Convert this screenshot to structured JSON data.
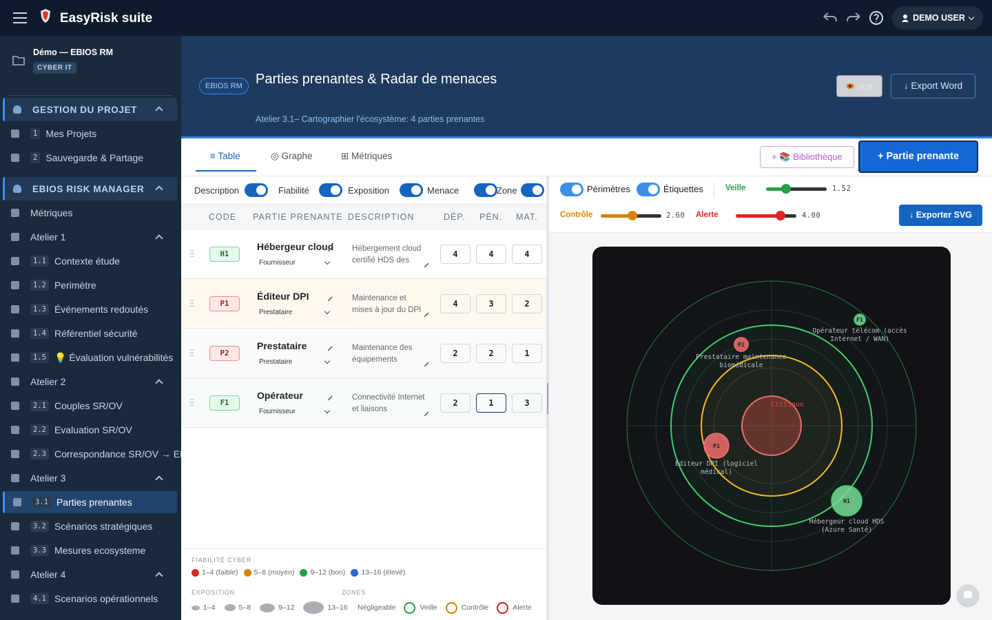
{
  "app": {
    "name": "EasyRisk suite",
    "user": "DEMO USER"
  },
  "sidebar": {
    "project": "Démo — EBIOS RM",
    "tag": "CYBER IT",
    "sections": [
      {
        "title": "GESTION DU PROJET",
        "items": [
          {
            "badge": "1",
            "label": "Mes Projets"
          },
          {
            "badge": "2",
            "label": "Sauvegarde & Partage"
          }
        ]
      },
      {
        "title": "EBIOS RISK MANAGER",
        "items": [
          {
            "label": "Métriques"
          },
          {
            "label": "Atelier 1",
            "items": [
              {
                "badge": "1.1",
                "label": "Contexte étude"
              },
              {
                "badge": "1.2",
                "label": "Perimètre"
              },
              {
                "badge": "1.3",
                "label": "Événements redoutés"
              },
              {
                "badge": "1.4",
                "label": "Référentiel sécurité"
              },
              {
                "badge": "1.5",
                "label": "💡 Évaluation vulnérabilités"
              }
            ]
          },
          {
            "label": "Atelier 2",
            "items": [
              {
                "badge": "2.1",
                "label": "Couples SR/OV"
              },
              {
                "badge": "2.2",
                "label": "Evaluation SR/OV"
              },
              {
                "badge": "2.3",
                "label": "Correspondance SR/OV → EF"
              }
            ]
          },
          {
            "label": "Atelier 3",
            "items": [
              {
                "badge": "3.1",
                "label": "Parties prenantes",
                "active": true
              },
              {
                "badge": "3.2",
                "label": "Scénarios stratégiques"
              },
              {
                "badge": "3.3",
                "label": "Mesures ecosysteme"
              }
            ]
          },
          {
            "label": "Atelier 4",
            "items": [
              {
                "badge": "4.1",
                "label": "Scenarios opérationnels"
              }
            ]
          }
        ]
      }
    ]
  },
  "header": {
    "badge": "EBIOS RM",
    "title": "Parties prenantes & Radar de menaces",
    "subtitle": "Atelier 3.1– Cartographier l'écosystème: 4 parties prenantes",
    "view_button": "Vue",
    "export_button": "↓ Export Word"
  },
  "tabs": [
    {
      "label": "≡ Table",
      "active": true
    },
    {
      "label": "◎ Graphe"
    },
    {
      "label": "⊞ Métriques"
    }
  ],
  "actions": {
    "library": "+ 📚 Bibliothèque",
    "add": "+ Partie prenante"
  },
  "table": {
    "toggles": [
      {
        "label": "Description",
        "on": true
      },
      {
        "label": "Fiabilité",
        "on": true
      },
      {
        "label": "Exposition",
        "on": true
      },
      {
        "label": "Menace",
        "on": true
      },
      {
        "label": "Zone",
        "on": true
      }
    ],
    "columns": [
      "CODE",
      "PARTIE PRENANTE",
      "DESCRIPTION",
      "DÉP.",
      "PÉN.",
      "MAT."
    ],
    "rows": [
      {
        "code": "H1",
        "tone": "green",
        "name": "Hébergeur cloud",
        "type": "Fournisseur",
        "description": "Hébergement cloud certifié HDS des",
        "dep": 4,
        "pen": 4,
        "mat": 4
      },
      {
        "code": "P1",
        "tone": "red",
        "name": "Éditeur DPI",
        "type": "Prestataire",
        "description": "Maintenance et mises à jour du DPI",
        "dep": 4,
        "pen": 3,
        "mat": 2
      },
      {
        "code": "P2",
        "tone": "red",
        "name": "Prestataire",
        "type": "Prestataire",
        "description": "Maintenance des équipements",
        "dep": 2,
        "pen": 2,
        "mat": 1
      },
      {
        "code": "F1",
        "tone": "green",
        "name": "Opérateur",
        "type": "Fournisseur",
        "description": "Connectivité Internet et liaisons",
        "dep": 2,
        "pen": 1,
        "mat": 3
      }
    ]
  },
  "legend": {
    "reliability": {
      "title": "FIABILITÉ CYBER",
      "items": [
        {
          "label": "1–4 (faible)",
          "color": "#e02424"
        },
        {
          "label": "5–8 (moyen)",
          "color": "#d9820b"
        },
        {
          "label": "9–12 (bon)",
          "color": "#23a046"
        },
        {
          "label": "13–16 (élevé)",
          "color": "#2f5fd8"
        }
      ]
    },
    "exposure": {
      "title": "EXPOSITION",
      "items": [
        "1–4",
        "5–8",
        "9–12",
        "13–16"
      ]
    },
    "zones": {
      "title": "ZONES",
      "items": [
        {
          "label": "Négligeable"
        },
        {
          "label": "Veille",
          "color": "#23a046"
        },
        {
          "label": "Contrôle",
          "color": "#d9820b"
        },
        {
          "label": "Alerte",
          "color": "#d81f1f"
        }
      ]
    }
  },
  "radar_controls": {
    "toggles": [
      {
        "label": "Périmètres",
        "on": true
      },
      {
        "label": "Étiquettes",
        "on": true
      }
    ],
    "thresholds": [
      {
        "label": "Veille",
        "value": "1.52",
        "color": "#23a046"
      },
      {
        "label": "Contrôle",
        "value": "2.60",
        "color": "#d9820b"
      },
      {
        "label": "Alerte",
        "value": "4.00",
        "color": "#e02424"
      }
    ],
    "export": "↓ Exporter SVG"
  },
  "radar": {
    "zone_label": "Critique",
    "points": [
      {
        "code": "F1",
        "tone": "green",
        "label": [
          "Opérateur télécom (accès",
          "Internet / WAN)"
        ]
      },
      {
        "code": "P2",
        "tone": "red",
        "label": [
          "Prestataire maintenance",
          "biomédicale"
        ]
      },
      {
        "code": "P1",
        "tone": "red",
        "label": [
          "Éditeur DPI (logiciel",
          "médical)"
        ]
      },
      {
        "code": "H1",
        "tone": "green",
        "label": [
          "Hébergeur cloud HDS",
          "(Azure Santé)"
        ]
      }
    ]
  }
}
